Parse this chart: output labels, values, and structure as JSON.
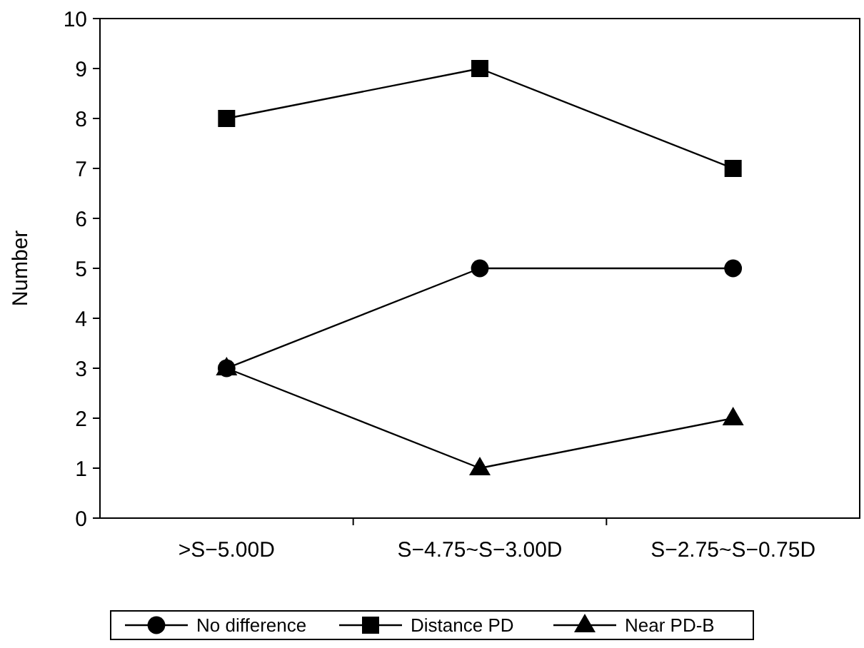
{
  "chart_data": {
    "type": "line",
    "ylabel": "Number",
    "categories": [
      ">S−5.00D",
      "S−4.75~S−3.00D",
      "S−2.75~S−0.75D"
    ],
    "series": [
      {
        "name": "No difference",
        "color": "#000000",
        "marker": "circle",
        "values": [
          3,
          5,
          5
        ]
      },
      {
        "name": "Distance PD",
        "color": "#000000",
        "marker": "square",
        "values": [
          8,
          9,
          7
        ]
      },
      {
        "name": "Near PD-B",
        "color": "#000000",
        "marker": "triangle",
        "values": [
          3,
          1,
          2
        ]
      }
    ],
    "ylim": [
      0,
      10
    ],
    "yticks": [
      0,
      1,
      2,
      3,
      4,
      5,
      6,
      7,
      8,
      9,
      10
    ],
    "grid": false,
    "legend": "bottom",
    "line_style": "solid"
  }
}
